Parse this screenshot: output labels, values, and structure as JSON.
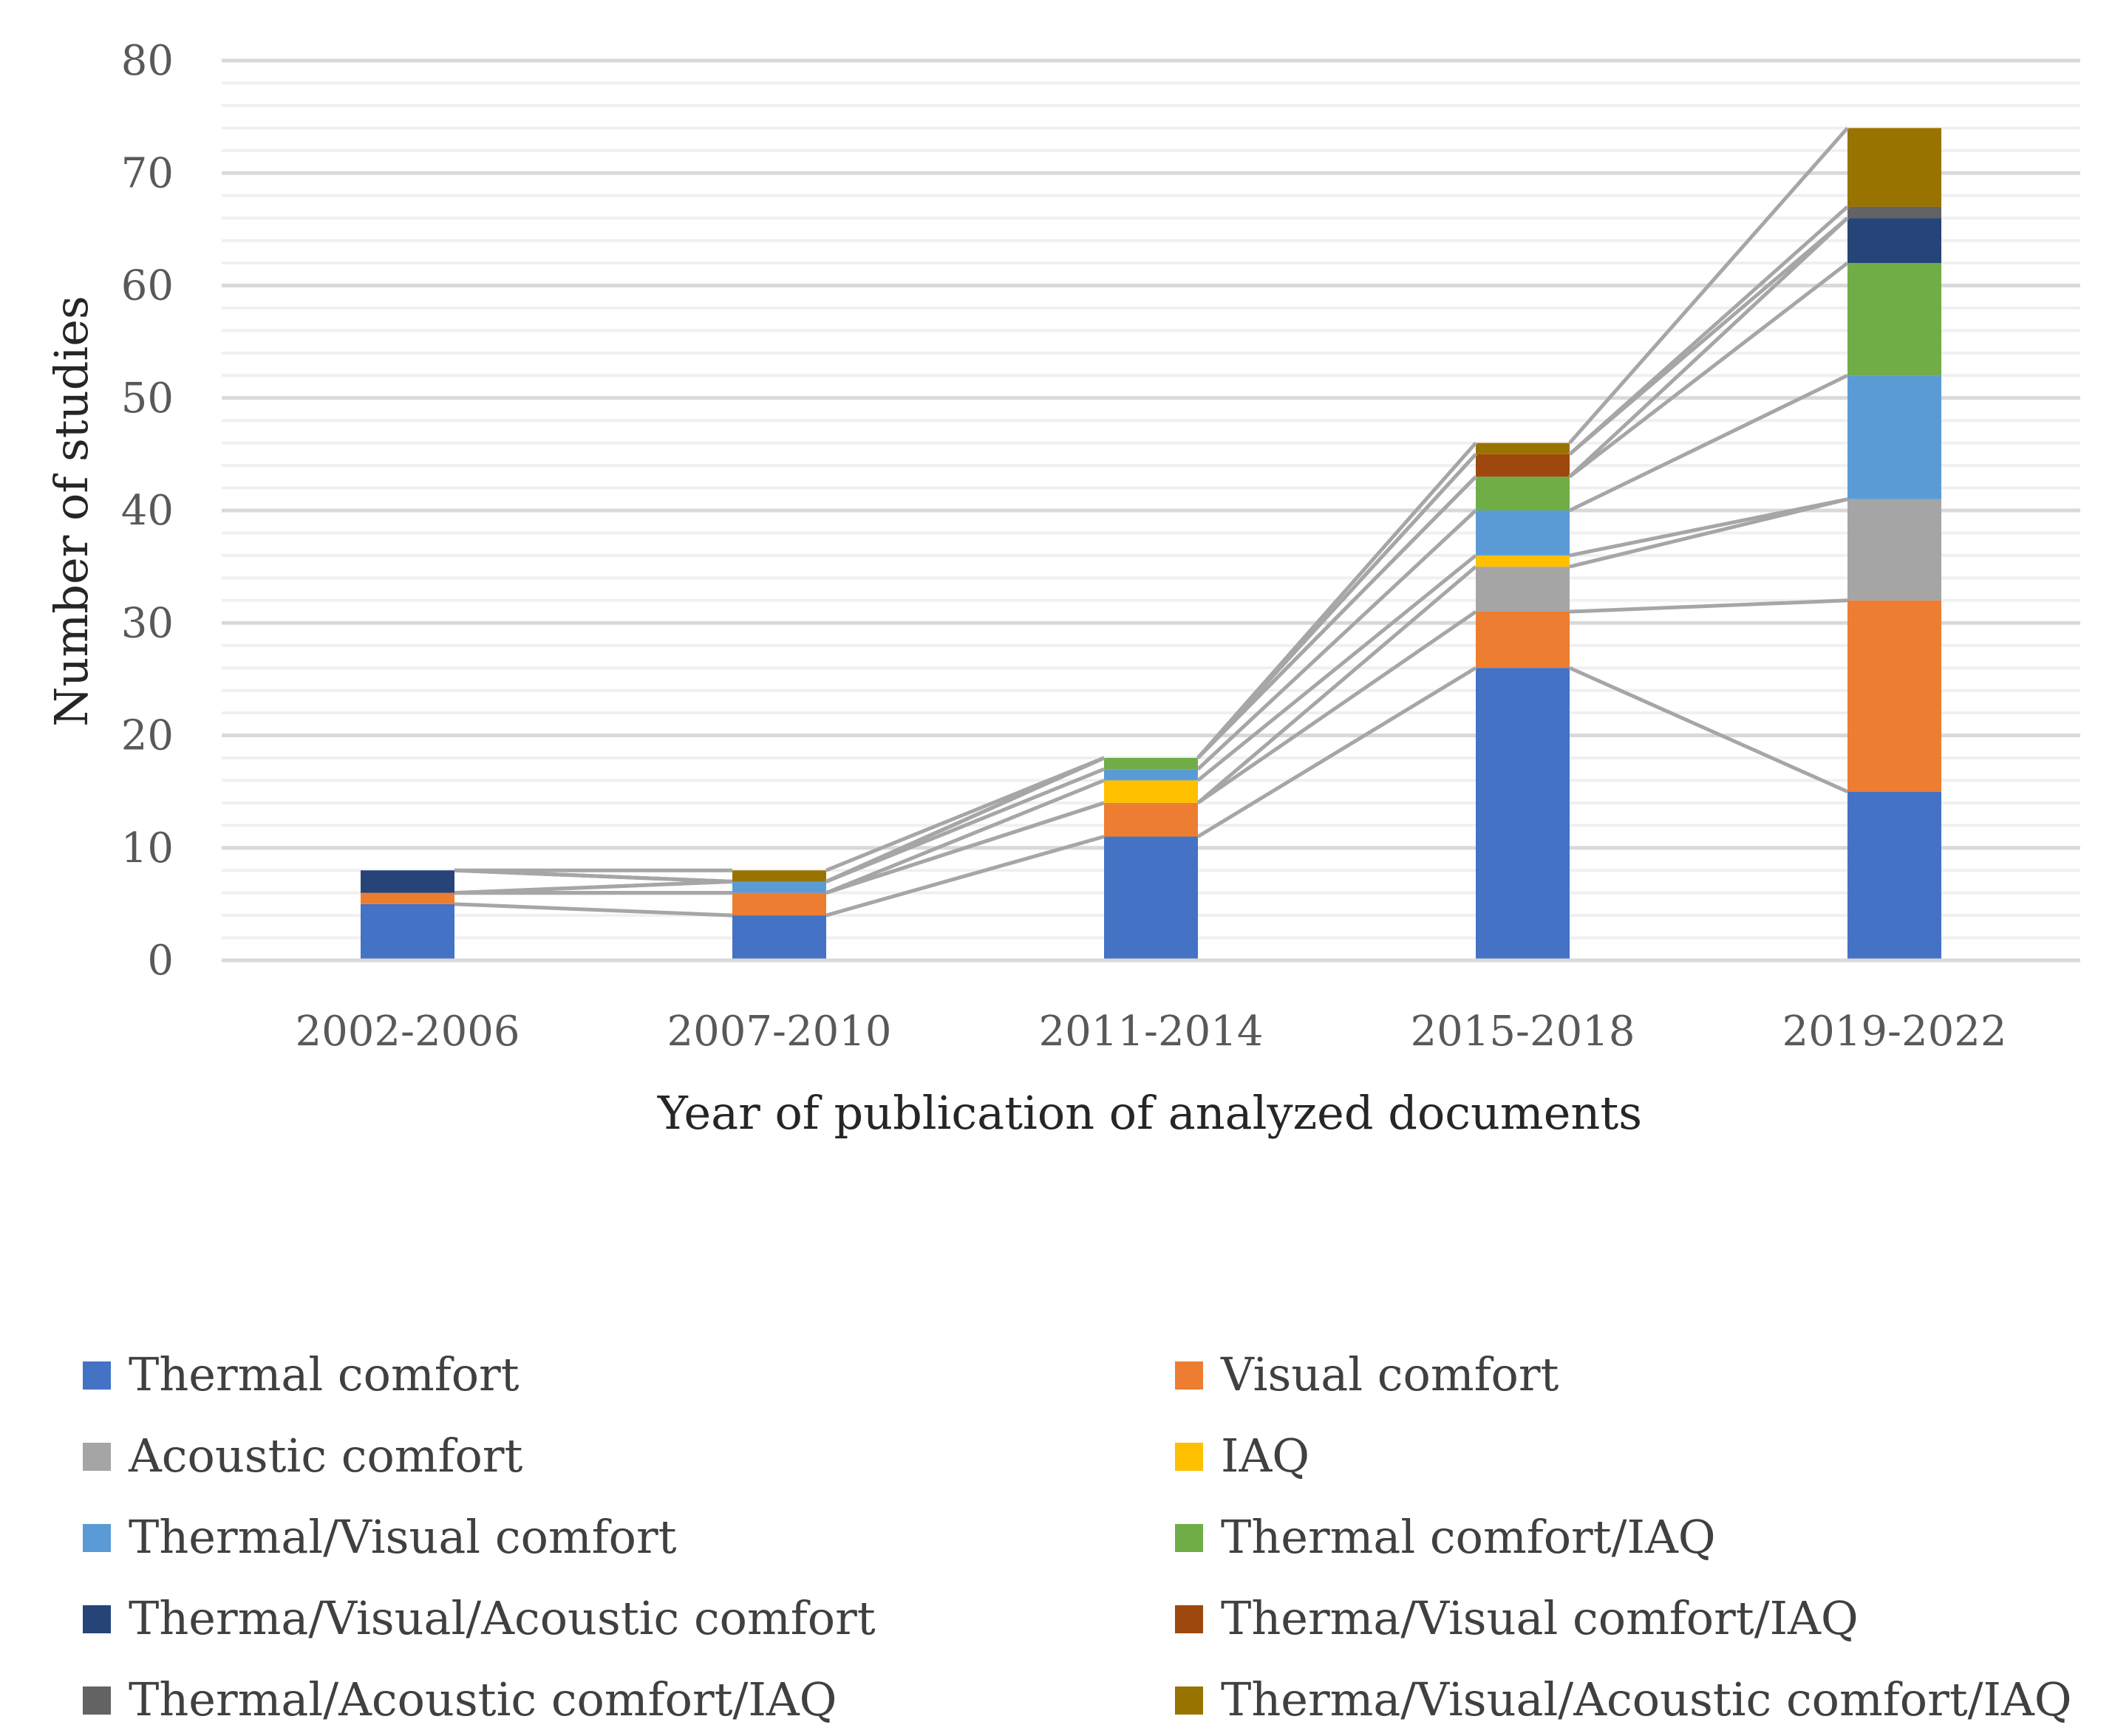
{
  "chart_data": {
    "type": "stacked-bar",
    "title": "",
    "xlabel": "Year of publication of analyzed documents",
    "ylabel": "Number of studies",
    "ylim": [
      0,
      80
    ],
    "yticks": [
      "0",
      "10",
      "20",
      "30",
      "40",
      "50",
      "60",
      "70",
      "80"
    ],
    "ytick_values": [
      0,
      10,
      20,
      30,
      40,
      50,
      60,
      70,
      80
    ],
    "grid": true,
    "series_lines": true,
    "legend_position": "bottom",
    "categories": [
      "2002-2006",
      "2007-2010",
      "2011-2014",
      "2015-2018",
      "2019-2022"
    ],
    "series": [
      {
        "name": "Thermal comfort",
        "color": "#4472C4",
        "values": [
          5,
          4,
          11,
          26,
          15
        ]
      },
      {
        "name": "Visual comfort",
        "color": "#ED7D31",
        "values": [
          1,
          2,
          3,
          5,
          17
        ]
      },
      {
        "name": "Acoustic comfort",
        "color": "#A5A5A5",
        "values": [
          0,
          0,
          0,
          4,
          9
        ]
      },
      {
        "name": "IAQ",
        "color": "#FFC000",
        "values": [
          0,
          0,
          2,
          1,
          0
        ]
      },
      {
        "name": "Thermal/Visual comfort",
        "color": "#5B9BD5",
        "values": [
          0,
          1,
          1,
          4,
          11
        ]
      },
      {
        "name": "Thermal comfort/IAQ",
        "color": "#70AD47",
        "values": [
          0,
          0,
          1,
          3,
          10
        ]
      },
      {
        "name": "Therma/Visual/Acoustic comfort",
        "color": "#264478",
        "values": [
          2,
          0,
          0,
          0,
          4
        ]
      },
      {
        "name": "Therma/Visual comfort/IAQ",
        "color": "#9E480E",
        "values": [
          0,
          0,
          0,
          2,
          0
        ]
      },
      {
        "name": "Thermal/Acoustic comfort/IAQ",
        "color": "#636363",
        "values": [
          0,
          0,
          0,
          0,
          1
        ]
      },
      {
        "name": "Therma/Visual/Acoustic comfort/IAQ",
        "color": "#997300",
        "values": [
          0,
          1,
          0,
          1,
          7
        ]
      }
    ]
  }
}
